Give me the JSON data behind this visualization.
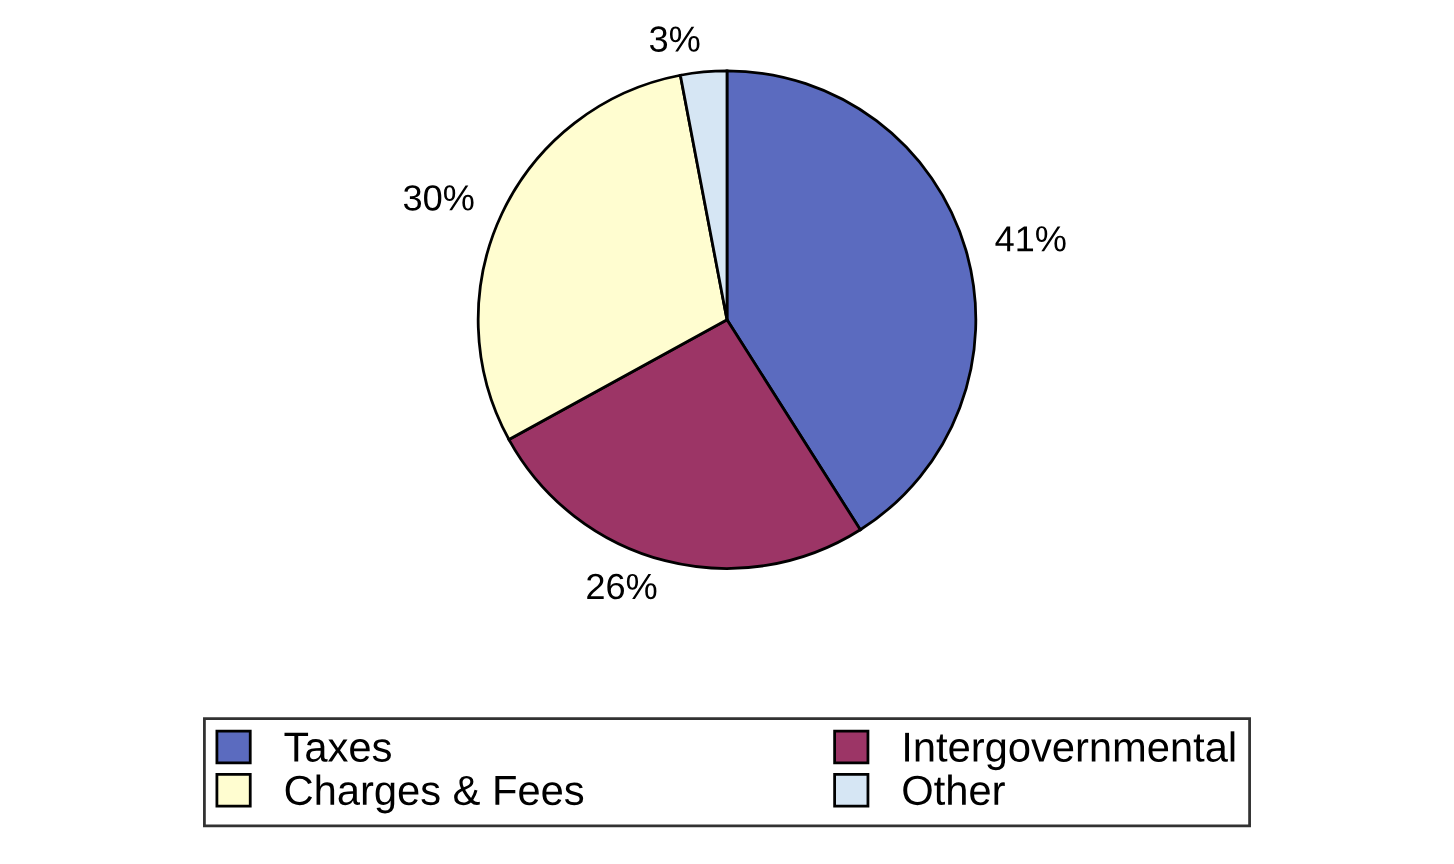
{
  "chart_data": {
    "type": "pie",
    "categories": [
      "Taxes",
      "Intergovernmental",
      "Charges & Fees",
      "Other"
    ],
    "values": [
      41,
      26,
      30,
      3
    ],
    "colors": [
      "#5b6bbf",
      "#9c3566",
      "#fffdd0",
      "#d6e6f4"
    ],
    "value_labels": [
      "41%",
      "26%",
      "30%",
      "3%"
    ],
    "legend": "bottom"
  }
}
